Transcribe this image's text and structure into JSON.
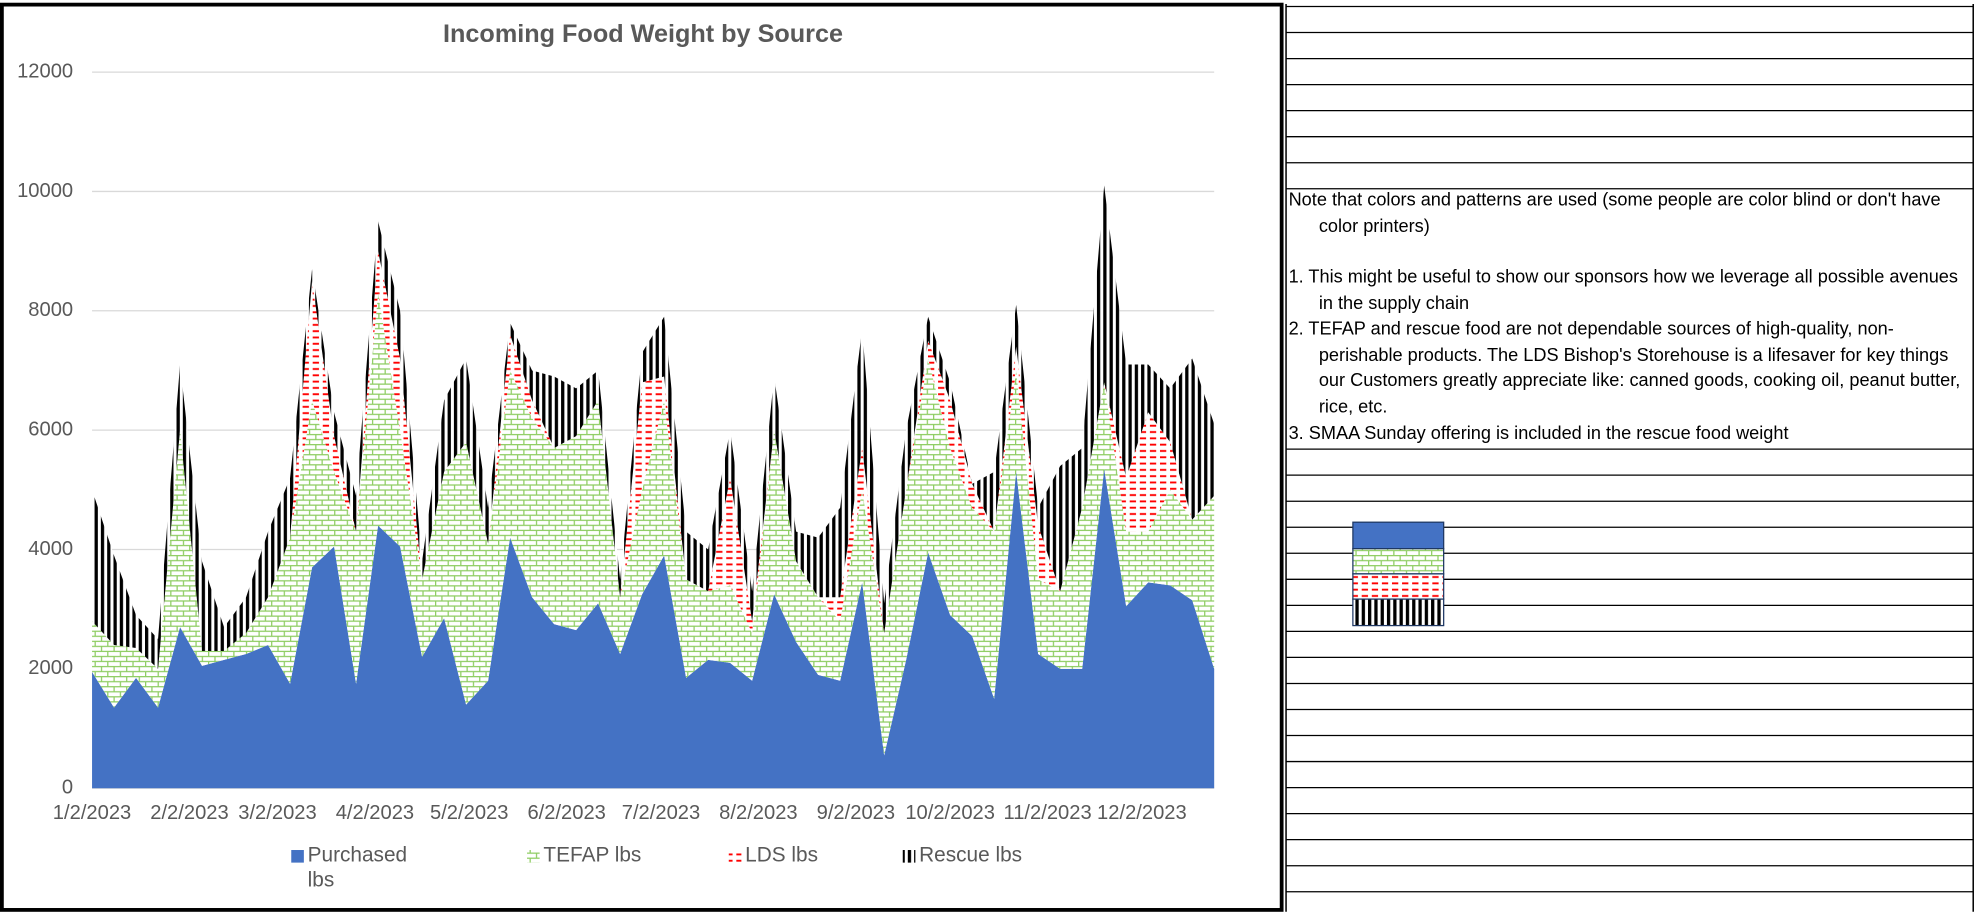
{
  "chart_data": {
    "type": "stacked-area",
    "title": "Incoming Food Weight by Source",
    "x": [
      "1/2/2023",
      "1/9/2023",
      "1/16/2023",
      "1/23/2023",
      "1/30/2023",
      "2/6/2023",
      "2/13/2023",
      "2/20/2023",
      "2/27/2023",
      "3/6/2023",
      "3/13/2023",
      "3/20/2023",
      "3/27/2023",
      "4/3/2023",
      "4/10/2023",
      "4/17/2023",
      "4/24/2023",
      "5/1/2023",
      "5/8/2023",
      "5/15/2023",
      "5/22/2023",
      "5/29/2023",
      "6/5/2023",
      "6/12/2023",
      "6/19/2023",
      "6/26/2023",
      "7/3/2023",
      "7/10/2023",
      "7/17/2023",
      "7/24/2023",
      "7/31/2023",
      "8/7/2023",
      "8/14/2023",
      "8/21/2023",
      "8/28/2023",
      "9/4/2023",
      "9/11/2023",
      "9/18/2023",
      "9/25/2023",
      "10/2/2023",
      "10/9/2023",
      "10/16/2023",
      "10/23/2023",
      "10/30/2023",
      "11/6/2023",
      "11/13/2023",
      "11/20/2023",
      "11/27/2023",
      "12/4/2023",
      "12/11/2023",
      "12/18/2023",
      "12/25/2023"
    ],
    "xlim": [
      "1/2/2023",
      "12/25/2023"
    ],
    "xticks": [
      "1/2/2023",
      "2/2/2023",
      "3/2/2023",
      "4/2/2023",
      "5/2/2023",
      "6/2/2023",
      "7/2/2023",
      "8/2/2023",
      "9/2/2023",
      "10/2/2023",
      "11/2/2023",
      "12/2/2023"
    ],
    "ylim": [
      0,
      12000
    ],
    "yticks": [
      0,
      2000,
      4000,
      6000,
      8000,
      10000,
      12000
    ],
    "grid": true,
    "legend": "bottom",
    "series": [
      {
        "name": "Purchased lbs",
        "color": "#4472c4",
        "pattern": "solid",
        "values": [
          1950,
          1350,
          1850,
          1350,
          2700,
          2050,
          2150,
          2250,
          2400,
          1750,
          3700,
          4050,
          1750,
          4400,
          4050,
          2200,
          2850,
          1400,
          1800,
          4200,
          3200,
          2750,
          2650,
          3100,
          2250,
          3250,
          3900,
          1850,
          2150,
          2100,
          1800,
          3250,
          2450,
          1900,
          1800,
          3450,
          550,
          2150,
          3950,
          2900,
          2550,
          1500,
          5300,
          2250,
          2000,
          2000,
          5350,
          3050,
          3450,
          3400,
          3150,
          2000
        ]
      },
      {
        "name": "TEFAP lbs",
        "color": "#8fcd63",
        "pattern": "brick",
        "values": [
          850,
          1050,
          500,
          650,
          3300,
          250,
          150,
          350,
          800,
          2450,
          2800,
          1250,
          2550,
          3900,
          1950,
          1300,
          2450,
          4400,
          2300,
          2800,
          3000,
          2950,
          3250,
          3400,
          950,
          1750,
          2600,
          1650,
          1150,
          1300,
          800,
          2750,
          1350,
          1300,
          1000,
          1550,
          2050,
          2850,
          3250,
          2800,
          2150,
          2800,
          1700,
          1250,
          1300,
          2700,
          1450,
          1250,
          850,
          1600,
          1350,
          2900
        ]
      },
      {
        "name": "LDS lbs",
        "color": "#ff0000",
        "pattern": "horizontal-dash",
        "values": [
          0,
          0,
          0,
          0,
          0,
          0,
          0,
          0,
          0,
          0,
          2000,
          600,
          0,
          700,
          1200,
          0,
          0,
          0,
          0,
          600,
          300,
          0,
          0,
          0,
          0,
          1800,
          400,
          0,
          0,
          1800,
          200,
          0,
          0,
          0,
          400,
          700,
          0,
          0,
          300,
          800,
          400,
          0,
          400,
          900,
          0,
          0,
          0,
          900,
          2000,
          800,
          0,
          0
        ]
      },
      {
        "name": "Rescue lbs",
        "color": "#000000",
        "pattern": "vertical-stripe",
        "values": [
          2200,
          1500,
          550,
          500,
          1100,
          1500,
          400,
          600,
          1100,
          1000,
          200,
          400,
          600,
          500,
          800,
          300,
          1200,
          1400,
          600,
          200,
          500,
          1200,
          800,
          500,
          300,
          500,
          1000,
          800,
          700,
          800,
          500,
          900,
          500,
          1000,
          1500,
          2000,
          500,
          1000,
          400,
          300,
          0,
          1000,
          700,
          300,
          2100,
          1000,
          3300,
          1900,
          800,
          900,
          2700,
          1200
        ]
      }
    ]
  },
  "notes": [
    "Note that colors and patterns are used (some people are color blind or don't have color printers)",
    "1. This might be useful to show our sponsors how we leverage all possible avenues in the supply chain",
    "2. TEFAP and rescue food are not dependable sources of high-quality, non-perishable products. The LDS Bishop's Storehouse is a lifesaver for key things our Customers greatly appreciate like: canned goods, cooking oil, peanut butter, rice, etc.",
    "3. SMAA Sunday offering is included in the rescue food weight"
  ]
}
